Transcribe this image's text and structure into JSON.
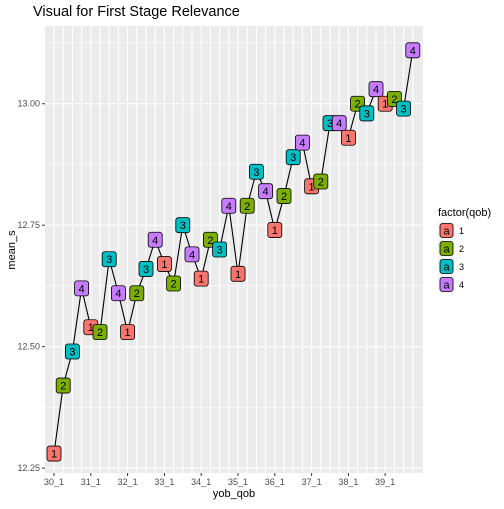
{
  "chart_data": {
    "type": "line",
    "title": "Visual for First Stage Relevance",
    "xlabel": "yob_qob",
    "ylabel": "mean_s",
    "x_tick_labels": [
      "30_1",
      "31_1",
      "32_1",
      "33_1",
      "34_1",
      "35_1",
      "36_1",
      "37_1",
      "38_1",
      "39_1"
    ],
    "y_ticks": [
      12.25,
      12.5,
      12.75,
      13.0
    ],
    "y_tick_labels": [
      "12.25",
      "12.50",
      "12.75",
      "13.00"
    ],
    "ylim": [
      12.24,
      13.16
    ],
    "grid": true,
    "legend": {
      "title": "factor(qob)",
      "placement": "right",
      "key_glyph": "a",
      "entries": [
        {
          "label": "1",
          "color": "#F8766D"
        },
        {
          "label": "2",
          "color": "#7CAE00"
        },
        {
          "label": "3",
          "color": "#00BFC4"
        },
        {
          "label": "4",
          "color": "#C77CFF"
        }
      ]
    },
    "x": [
      "30_1",
      "30_2",
      "30_3",
      "30_4",
      "31_1",
      "31_2",
      "31_3",
      "31_4",
      "32_1",
      "32_2",
      "32_3",
      "32_4",
      "33_1",
      "33_2",
      "33_3",
      "33_4",
      "34_1",
      "34_2",
      "34_3",
      "34_4",
      "35_1",
      "35_2",
      "35_3",
      "35_4",
      "36_1",
      "36_2",
      "36_3",
      "36_4",
      "37_1",
      "37_2",
      "37_3",
      "37_4",
      "38_1",
      "38_2",
      "38_3",
      "38_4",
      "39_1",
      "39_2",
      "39_3",
      "39_4"
    ],
    "qob": [
      1,
      2,
      3,
      4,
      1,
      2,
      3,
      4,
      1,
      2,
      3,
      4,
      1,
      2,
      3,
      4,
      1,
      2,
      3,
      4,
      1,
      2,
      3,
      4,
      1,
      2,
      3,
      4,
      1,
      2,
      3,
      4,
      1,
      2,
      3,
      4,
      1,
      2,
      3,
      4
    ],
    "values": [
      12.28,
      12.42,
      12.49,
      12.62,
      12.54,
      12.53,
      12.68,
      12.61,
      12.53,
      12.61,
      12.66,
      12.72,
      12.67,
      12.63,
      12.75,
      12.69,
      12.64,
      12.72,
      12.7,
      12.79,
      12.65,
      12.79,
      12.86,
      12.82,
      12.74,
      12.81,
      12.89,
      12.92,
      12.83,
      12.84,
      12.96,
      12.96,
      12.93,
      13.0,
      12.98,
      13.03,
      13.0,
      13.01,
      12.99,
      13.11
    ]
  }
}
